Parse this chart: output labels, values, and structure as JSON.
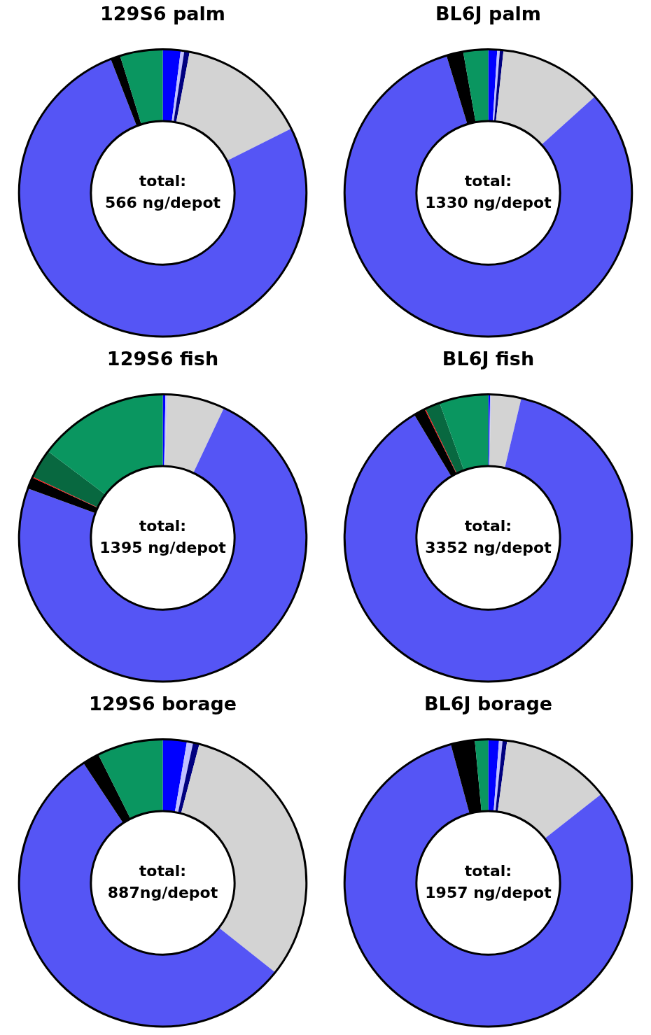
{
  "chart_data": [
    {
      "type": "donut",
      "title": "129S6 palm",
      "categories": [
        null,
        null,
        null,
        null,
        null,
        null,
        null
      ],
      "values": [
        2,
        0.4,
        0.6,
        14.6,
        76.5,
        1.1,
        4.8
      ],
      "colors": [
        "#0000ff",
        "#c0c0ff",
        "#000080",
        "#d3d3d3",
        "#5555f5",
        "#000000",
        "#0a9660"
      ],
      "annotations": [
        "total:\n566 ng/depot"
      ]
    },
    {
      "type": "donut",
      "title": "BL6J palm",
      "categories": [
        null,
        null,
        null,
        null,
        null,
        null,
        null
      ],
      "values": [
        1,
        0.3,
        0.4,
        11.6,
        82,
        1.9,
        2.8
      ],
      "colors": [
        "#0000ff",
        "#c0c0ff",
        "#000080",
        "#d3d3d3",
        "#5555f5",
        "#000000",
        "#0a9660"
      ],
      "annotations": [
        "total:\n1330 ng/depot"
      ]
    },
    {
      "type": "donut",
      "title": "129S6 fish",
      "categories": [
        null,
        null,
        null,
        null,
        null,
        null,
        null,
        null
      ],
      "values": [
        0.3,
        0.2,
        6.5,
        73.6,
        1.3,
        0.1,
        3.3,
        14.7
      ],
      "colors": [
        "#0000ff",
        "#c0c0ff",
        "#d3d3d3",
        "#5555f5",
        "#000000",
        "#ff0000",
        "#086840",
        "#0a9660"
      ],
      "annotations": [
        "total:\n1395 ng/depot"
      ]
    },
    {
      "type": "donut",
      "title": "BL6J fish",
      "categories": [
        null,
        null,
        null,
        null,
        null,
        null,
        null,
        null
      ],
      "values": [
        0.2,
        0.1,
        3.4,
        87.7,
        1.3,
        0.1,
        1.7,
        5.5
      ],
      "colors": [
        "#0000ff",
        "#c0c0ff",
        "#d3d3d3",
        "#5555f5",
        "#000000",
        "#ff0000",
        "#086840",
        "#0a9660"
      ],
      "annotations": [
        "total:\n3352 ng/depot"
      ]
    },
    {
      "type": "donut",
      "title": "129S6 borage",
      "categories": [
        null,
        null,
        null,
        null,
        null,
        null,
        null
      ],
      "values": [
        2.7,
        0.7,
        0.7,
        31.6,
        55,
        1.9,
        7.4
      ],
      "colors": [
        "#0000ff",
        "#c0c0ff",
        "#000080",
        "#d3d3d3",
        "#5555f5",
        "#000000",
        "#0a9660"
      ],
      "annotations": [
        "total:\n887ng/depot"
      ]
    },
    {
      "type": "donut",
      "title": "BL6J borage",
      "categories": [
        null,
        null,
        null,
        null,
        null,
        null,
        null
      ],
      "values": [
        1.2,
        0.4,
        0.5,
        12.3,
        81.4,
        2.7,
        1.5
      ],
      "colors": [
        "#0000ff",
        "#c0c0ff",
        "#000080",
        "#d3d3d3",
        "#5555f5",
        "#000000",
        "#0a9660"
      ],
      "annotations": [
        "total:\n1957 ng/depot"
      ]
    }
  ]
}
